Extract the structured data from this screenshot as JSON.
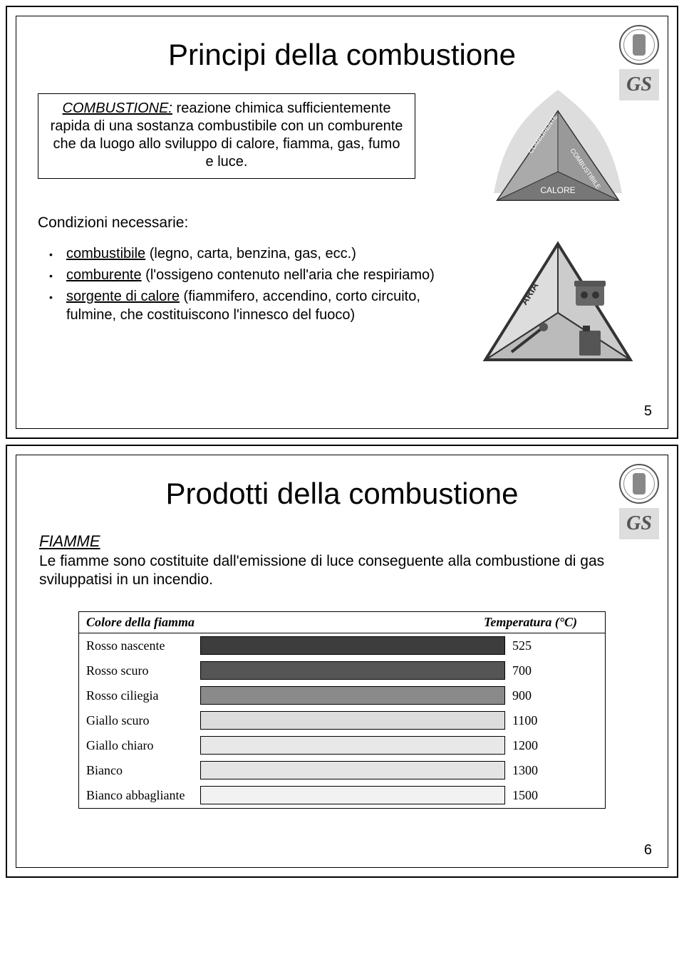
{
  "slide1": {
    "title": "Principi della combustione",
    "definition_term": "COMBUSTIONE:",
    "definition_text": " reazione chimica sufficientemente rapida di una sostanza combustibile con un comburente che da luogo allo sviluppo di calore, fiamma, gas, fumo e luce.",
    "conditions_heading": "Condizioni necessarie:",
    "bullets": [
      {
        "term": "combustibile",
        "rest": " (legno, carta, benzina, gas, ecc.)"
      },
      {
        "term": "comburente",
        "rest": " (l'ossigeno contenuto nell'aria che respiriamo)"
      },
      {
        "term": "sorgente di calore",
        "rest": " (fiammifero, accendino, corto circuito, fulmine, che costituiscono l'innesco del fuoco)"
      }
    ],
    "triangle1": {
      "left": "COMBURENTE",
      "right": "COMBUSTIBILE",
      "base": "CALORE"
    },
    "triangle2": {
      "left": "ARIA",
      "right": "GAS",
      "base": ""
    },
    "page_number": "5",
    "logo_text": "GS"
  },
  "slide2": {
    "title": "Prodotti della combustione",
    "subheading": "FIAMME",
    "subtext": "Le fiamme sono costituite dall'emissione di luce conseguente alla combustione di gas sviluppatisi in un incendio.",
    "table": {
      "header_label": "Colore della fiamma",
      "header_temp": "Temperatura (°C)",
      "header_fontsize": 18,
      "row_fontsize": 18,
      "border_color": "#000000",
      "rows": [
        {
          "label": "Rosso nascente",
          "temp": "525",
          "bar_color": "#3d3d3d"
        },
        {
          "label": "Rosso scuro",
          "temp": "700",
          "bar_color": "#555555"
        },
        {
          "label": "Rosso ciliegia",
          "temp": "900",
          "bar_color": "#8a8a8a"
        },
        {
          "label": "Giallo scuro",
          "temp": "1100",
          "bar_color": "#dcdcdc"
        },
        {
          "label": "Giallo chiaro",
          "temp": "1200",
          "bar_color": "#e8e8e8"
        },
        {
          "label": "Bianco",
          "temp": "1300",
          "bar_color": "#e4e4e4"
        },
        {
          "label": "Bianco abbagliante",
          "temp": "1500",
          "bar_color": "#f2f2f2"
        }
      ]
    },
    "page_number": "6",
    "logo_text": "GS"
  },
  "colors": {
    "page_bg": "#ffffff",
    "text": "#000000",
    "border": "#000000",
    "logo_bg": "#dddddd",
    "logo_text": "#555555",
    "seal_border": "#555555"
  }
}
